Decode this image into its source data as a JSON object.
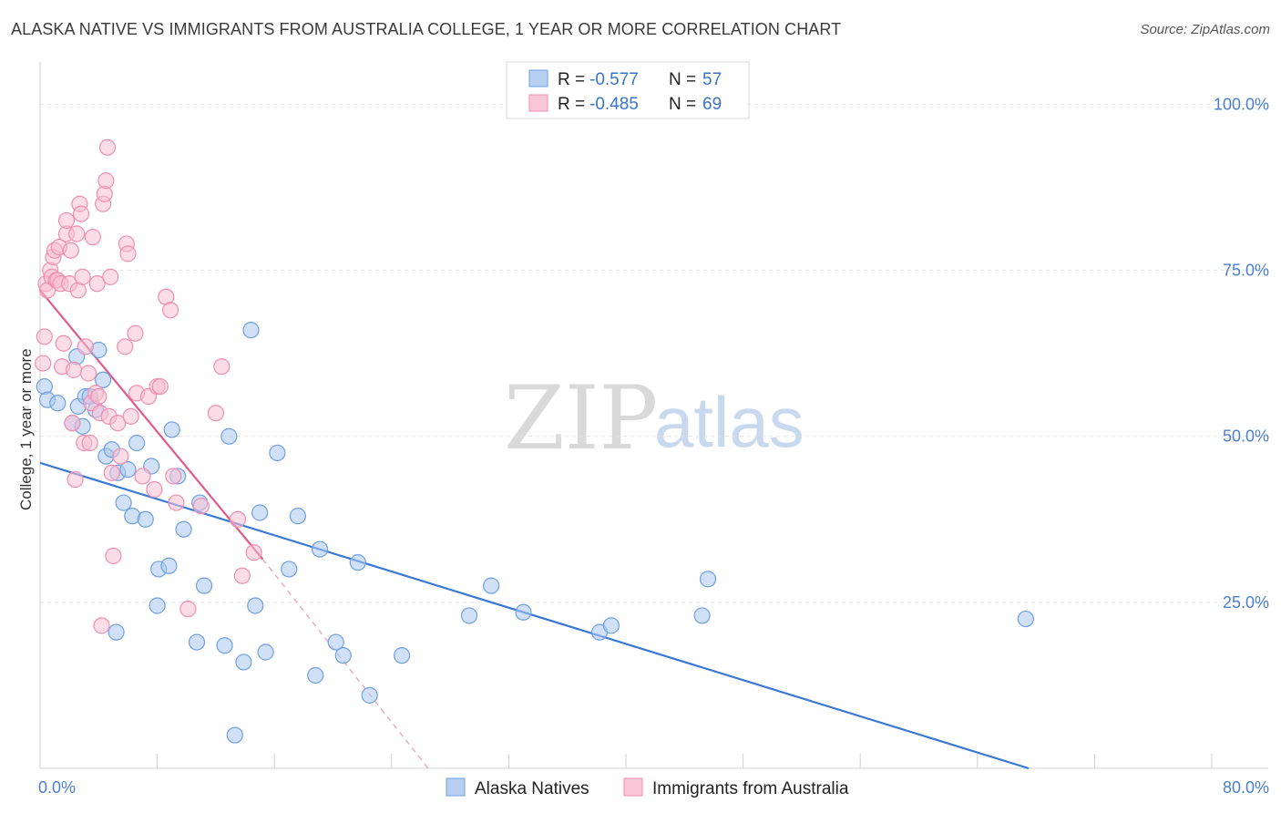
{
  "title": "ALASKA NATIVE VS IMMIGRANTS FROM AUSTRALIA COLLEGE, 1 YEAR OR MORE CORRELATION CHART",
  "source": "Source: ZipAtlas.com",
  "watermark": {
    "zip": "ZIP",
    "atlas": "atlas"
  },
  "legend": {
    "r_label": "R =",
    "n_label": "N =",
    "rows": [
      {
        "r": "-0.577",
        "n": "57"
      },
      {
        "r": "-0.485",
        "n": "69"
      }
    ]
  },
  "chart_data": {
    "type": "scatter",
    "title": "ALASKA NATIVE VS IMMIGRANTS FROM AUSTRALIA COLLEGE, 1 YEAR OR MORE CORRELATION CHART",
    "xlabel": "",
    "ylabel": "College, 1 year or more",
    "xlim": [
      0,
      80
    ],
    "ylim": [
      0,
      105
    ],
    "x_tick_labels": [
      "0.0%",
      "80.0%"
    ],
    "y_ticks": [
      25,
      50,
      75,
      100
    ],
    "y_tick_labels": [
      "25.0%",
      "50.0%",
      "75.0%",
      "100.0%"
    ],
    "grid": true,
    "series": [
      {
        "name": "Alaska Natives",
        "color": "#6f9fe0",
        "fill": "#aac8f0",
        "trend": {
          "x0": 0,
          "y0": 46,
          "x1": 67.5,
          "y1": 0,
          "color": "#3a78d6"
        },
        "points": [
          [
            0.3,
            57.5
          ],
          [
            0.5,
            55.5
          ],
          [
            1.2,
            55
          ],
          [
            2.2,
            52
          ],
          [
            2.5,
            62
          ],
          [
            2.6,
            54.5
          ],
          [
            2.9,
            51.5
          ],
          [
            3.1,
            56
          ],
          [
            3.4,
            56
          ],
          [
            3.8,
            54
          ],
          [
            4.0,
            63
          ],
          [
            4.3,
            58.5
          ],
          [
            4.5,
            47
          ],
          [
            4.9,
            48
          ],
          [
            5.2,
            20.5
          ],
          [
            5.3,
            44.5
          ],
          [
            5.7,
            40
          ],
          [
            6.0,
            45
          ],
          [
            6.3,
            38
          ],
          [
            6.6,
            49
          ],
          [
            7.2,
            37.5
          ],
          [
            7.6,
            45.5
          ],
          [
            8.0,
            24.5
          ],
          [
            8.1,
            30
          ],
          [
            8.8,
            30.5
          ],
          [
            9.0,
            51
          ],
          [
            9.4,
            44
          ],
          [
            9.8,
            36
          ],
          [
            10.7,
            19
          ],
          [
            10.9,
            40
          ],
          [
            11.2,
            27.5
          ],
          [
            12.6,
            18.5
          ],
          [
            12.9,
            50
          ],
          [
            13.3,
            5
          ],
          [
            13.9,
            16
          ],
          [
            14.4,
            66
          ],
          [
            14.7,
            24.5
          ],
          [
            15.0,
            38.5
          ],
          [
            15.4,
            17.5
          ],
          [
            16.2,
            47.5
          ],
          [
            17.0,
            30
          ],
          [
            17.6,
            38
          ],
          [
            18.8,
            14
          ],
          [
            19.1,
            33
          ],
          [
            20.2,
            19
          ],
          [
            20.7,
            17
          ],
          [
            21.7,
            31
          ],
          [
            22.5,
            11
          ],
          [
            24.7,
            17
          ],
          [
            29.3,
            23
          ],
          [
            30.8,
            27.5
          ],
          [
            33.0,
            23.5
          ],
          [
            38.2,
            20.5
          ],
          [
            39.0,
            21.5
          ],
          [
            45.2,
            23
          ],
          [
            45.6,
            28.5
          ],
          [
            67.3,
            22.5
          ]
        ]
      },
      {
        "name": "Immigrants from Australia",
        "color": "#ef8fb0",
        "fill": "#f7c0d4",
        "trend": {
          "x0": 0,
          "y0": 72,
          "x1": 15.2,
          "y1": 31.5,
          "color": "#e05a8c"
        },
        "trend_dashed": {
          "x0": 15.2,
          "y0": 31.5,
          "x1": 26.5,
          "y1": 0,
          "color": "#e7a0bb"
        },
        "points": [
          [
            0.2,
            61
          ],
          [
            0.3,
            65
          ],
          [
            0.4,
            73
          ],
          [
            0.5,
            72
          ],
          [
            0.7,
            75
          ],
          [
            0.8,
            74
          ],
          [
            0.9,
            77
          ],
          [
            1.0,
            78
          ],
          [
            1.1,
            73.5
          ],
          [
            1.2,
            73.5
          ],
          [
            1.3,
            78.5
          ],
          [
            1.4,
            73
          ],
          [
            1.5,
            60.5
          ],
          [
            1.6,
            64
          ],
          [
            1.8,
            80.5
          ],
          [
            1.8,
            82.5
          ],
          [
            2.0,
            73
          ],
          [
            2.1,
            78
          ],
          [
            2.2,
            52
          ],
          [
            2.3,
            60
          ],
          [
            2.4,
            43.5
          ],
          [
            2.5,
            80.5
          ],
          [
            2.6,
            72
          ],
          [
            2.7,
            85
          ],
          [
            2.8,
            83.5
          ],
          [
            2.9,
            74
          ],
          [
            3.0,
            49
          ],
          [
            3.1,
            63.5
          ],
          [
            3.3,
            59.5
          ],
          [
            3.4,
            49
          ],
          [
            3.5,
            55
          ],
          [
            3.6,
            80
          ],
          [
            3.8,
            56.5
          ],
          [
            3.9,
            73
          ],
          [
            4.0,
            56
          ],
          [
            4.1,
            53.5
          ],
          [
            4.2,
            21.5
          ],
          [
            4.3,
            85
          ],
          [
            4.4,
            86.5
          ],
          [
            4.5,
            88.5
          ],
          [
            4.6,
            93.5
          ],
          [
            4.7,
            53
          ],
          [
            4.8,
            74
          ],
          [
            4.9,
            44.5
          ],
          [
            5.0,
            32
          ],
          [
            5.3,
            52
          ],
          [
            5.5,
            47
          ],
          [
            5.8,
            63.5
          ],
          [
            5.9,
            79
          ],
          [
            6.0,
            77.5
          ],
          [
            6.2,
            53
          ],
          [
            6.5,
            65.5
          ],
          [
            6.6,
            56.5
          ],
          [
            7.0,
            44
          ],
          [
            7.4,
            56
          ],
          [
            7.8,
            42
          ],
          [
            8.0,
            57.5
          ],
          [
            8.2,
            57.5
          ],
          [
            8.6,
            71
          ],
          [
            8.9,
            69
          ],
          [
            9.1,
            44
          ],
          [
            9.3,
            40
          ],
          [
            10.1,
            24
          ],
          [
            11.0,
            39.5
          ],
          [
            12.0,
            53.5
          ],
          [
            12.4,
            60.5
          ],
          [
            13.5,
            37.5
          ],
          [
            13.8,
            29
          ],
          [
            14.6,
            32.5
          ]
        ]
      }
    ]
  }
}
